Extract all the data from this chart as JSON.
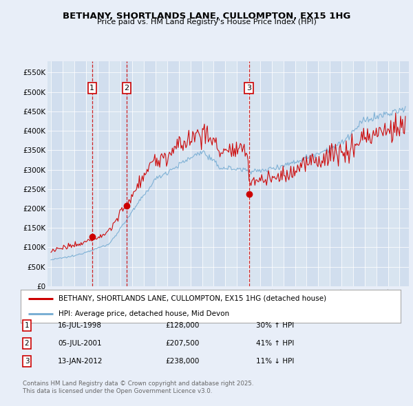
{
  "title": "BETHANY, SHORTLANDS LANE, CULLOMPTON, EX15 1HG",
  "subtitle": "Price paid vs. HM Land Registry's House Price Index (HPI)",
  "background_color": "#e8eef8",
  "plot_bg_color": "#d8e4f0",
  "sales": [
    {
      "date_num": 1998.54,
      "price": 128000,
      "label": "1"
    },
    {
      "date_num": 2001.51,
      "price": 207500,
      "label": "2"
    },
    {
      "date_num": 2012.04,
      "price": 238000,
      "label": "3"
    }
  ],
  "sale_dates_str": [
    "16-JUL-1998",
    "05-JUL-2001",
    "13-JAN-2012"
  ],
  "sale_prices_str": [
    "£128,000",
    "£207,500",
    "£238,000"
  ],
  "sale_hpi_str": [
    "30% ↑ HPI",
    "41% ↑ HPI",
    "11% ↓ HPI"
  ],
  "legend_line1": "BETHANY, SHORTLANDS LANE, CULLOMPTON, EX15 1HG (detached house)",
  "legend_line2": "HPI: Average price, detached house, Mid Devon",
  "footer": "Contains HM Land Registry data © Crown copyright and database right 2025.\nThis data is licensed under the Open Government Licence v3.0.",
  "hpi_color": "#7bafd4",
  "sale_line_color": "#cc0000",
  "sale_dot_color": "#cc0000",
  "vline_color": "#cc0000",
  "ylim": [
    0,
    580000
  ],
  "yticks": [
    0,
    50000,
    100000,
    150000,
    200000,
    250000,
    300000,
    350000,
    400000,
    450000,
    500000,
    550000
  ],
  "xlim_start": 1994.7,
  "xlim_end": 2025.8
}
